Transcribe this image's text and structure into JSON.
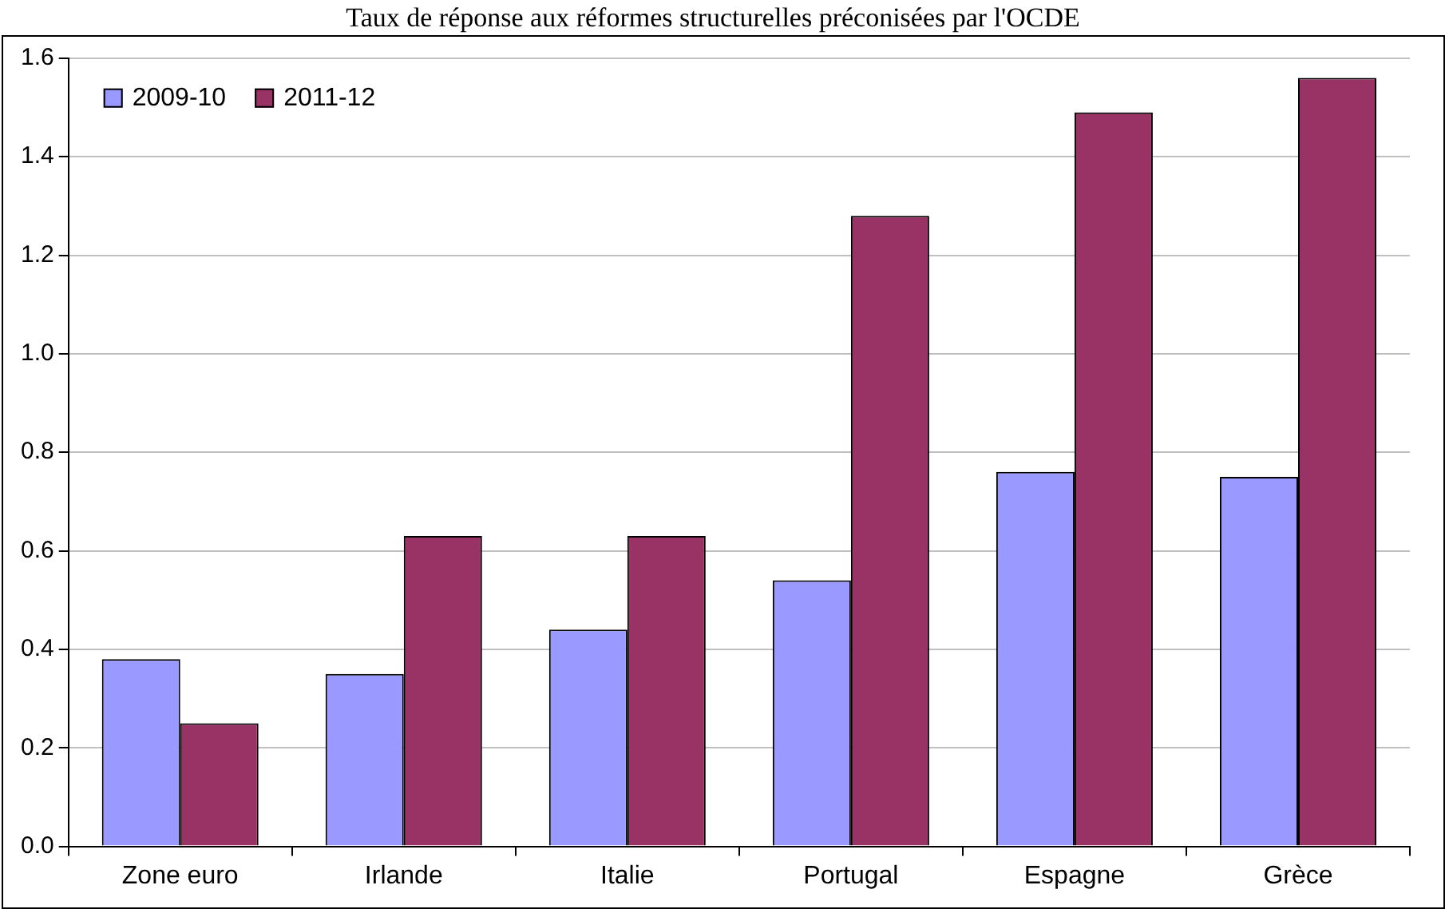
{
  "chart_data": {
    "type": "bar",
    "title": "Taux de réponse aux réformes structurelles préconisées par l'OCDE",
    "categories": [
      "Zone euro",
      "Irlande",
      "Italie",
      "Portugal",
      "Espagne",
      "Grèce"
    ],
    "series": [
      {
        "name": "2009-10",
        "color": "#9999ff",
        "values": [
          0.38,
          0.35,
          0.44,
          0.54,
          0.76,
          0.75
        ]
      },
      {
        "name": "2011-12",
        "color": "#993366",
        "values": [
          0.25,
          0.63,
          0.63,
          1.28,
          1.49,
          1.56
        ]
      }
    ],
    "ylim": [
      0,
      1.6
    ],
    "yticks": [
      {
        "value": 0,
        "label": "0.0"
      },
      0.2,
      0.4,
      0.6,
      0.8,
      {
        "value": 1,
        "label": "1.0"
      },
      1.2,
      1.4,
      1.6
    ],
    "grid": "y",
    "legend": "top left"
  }
}
